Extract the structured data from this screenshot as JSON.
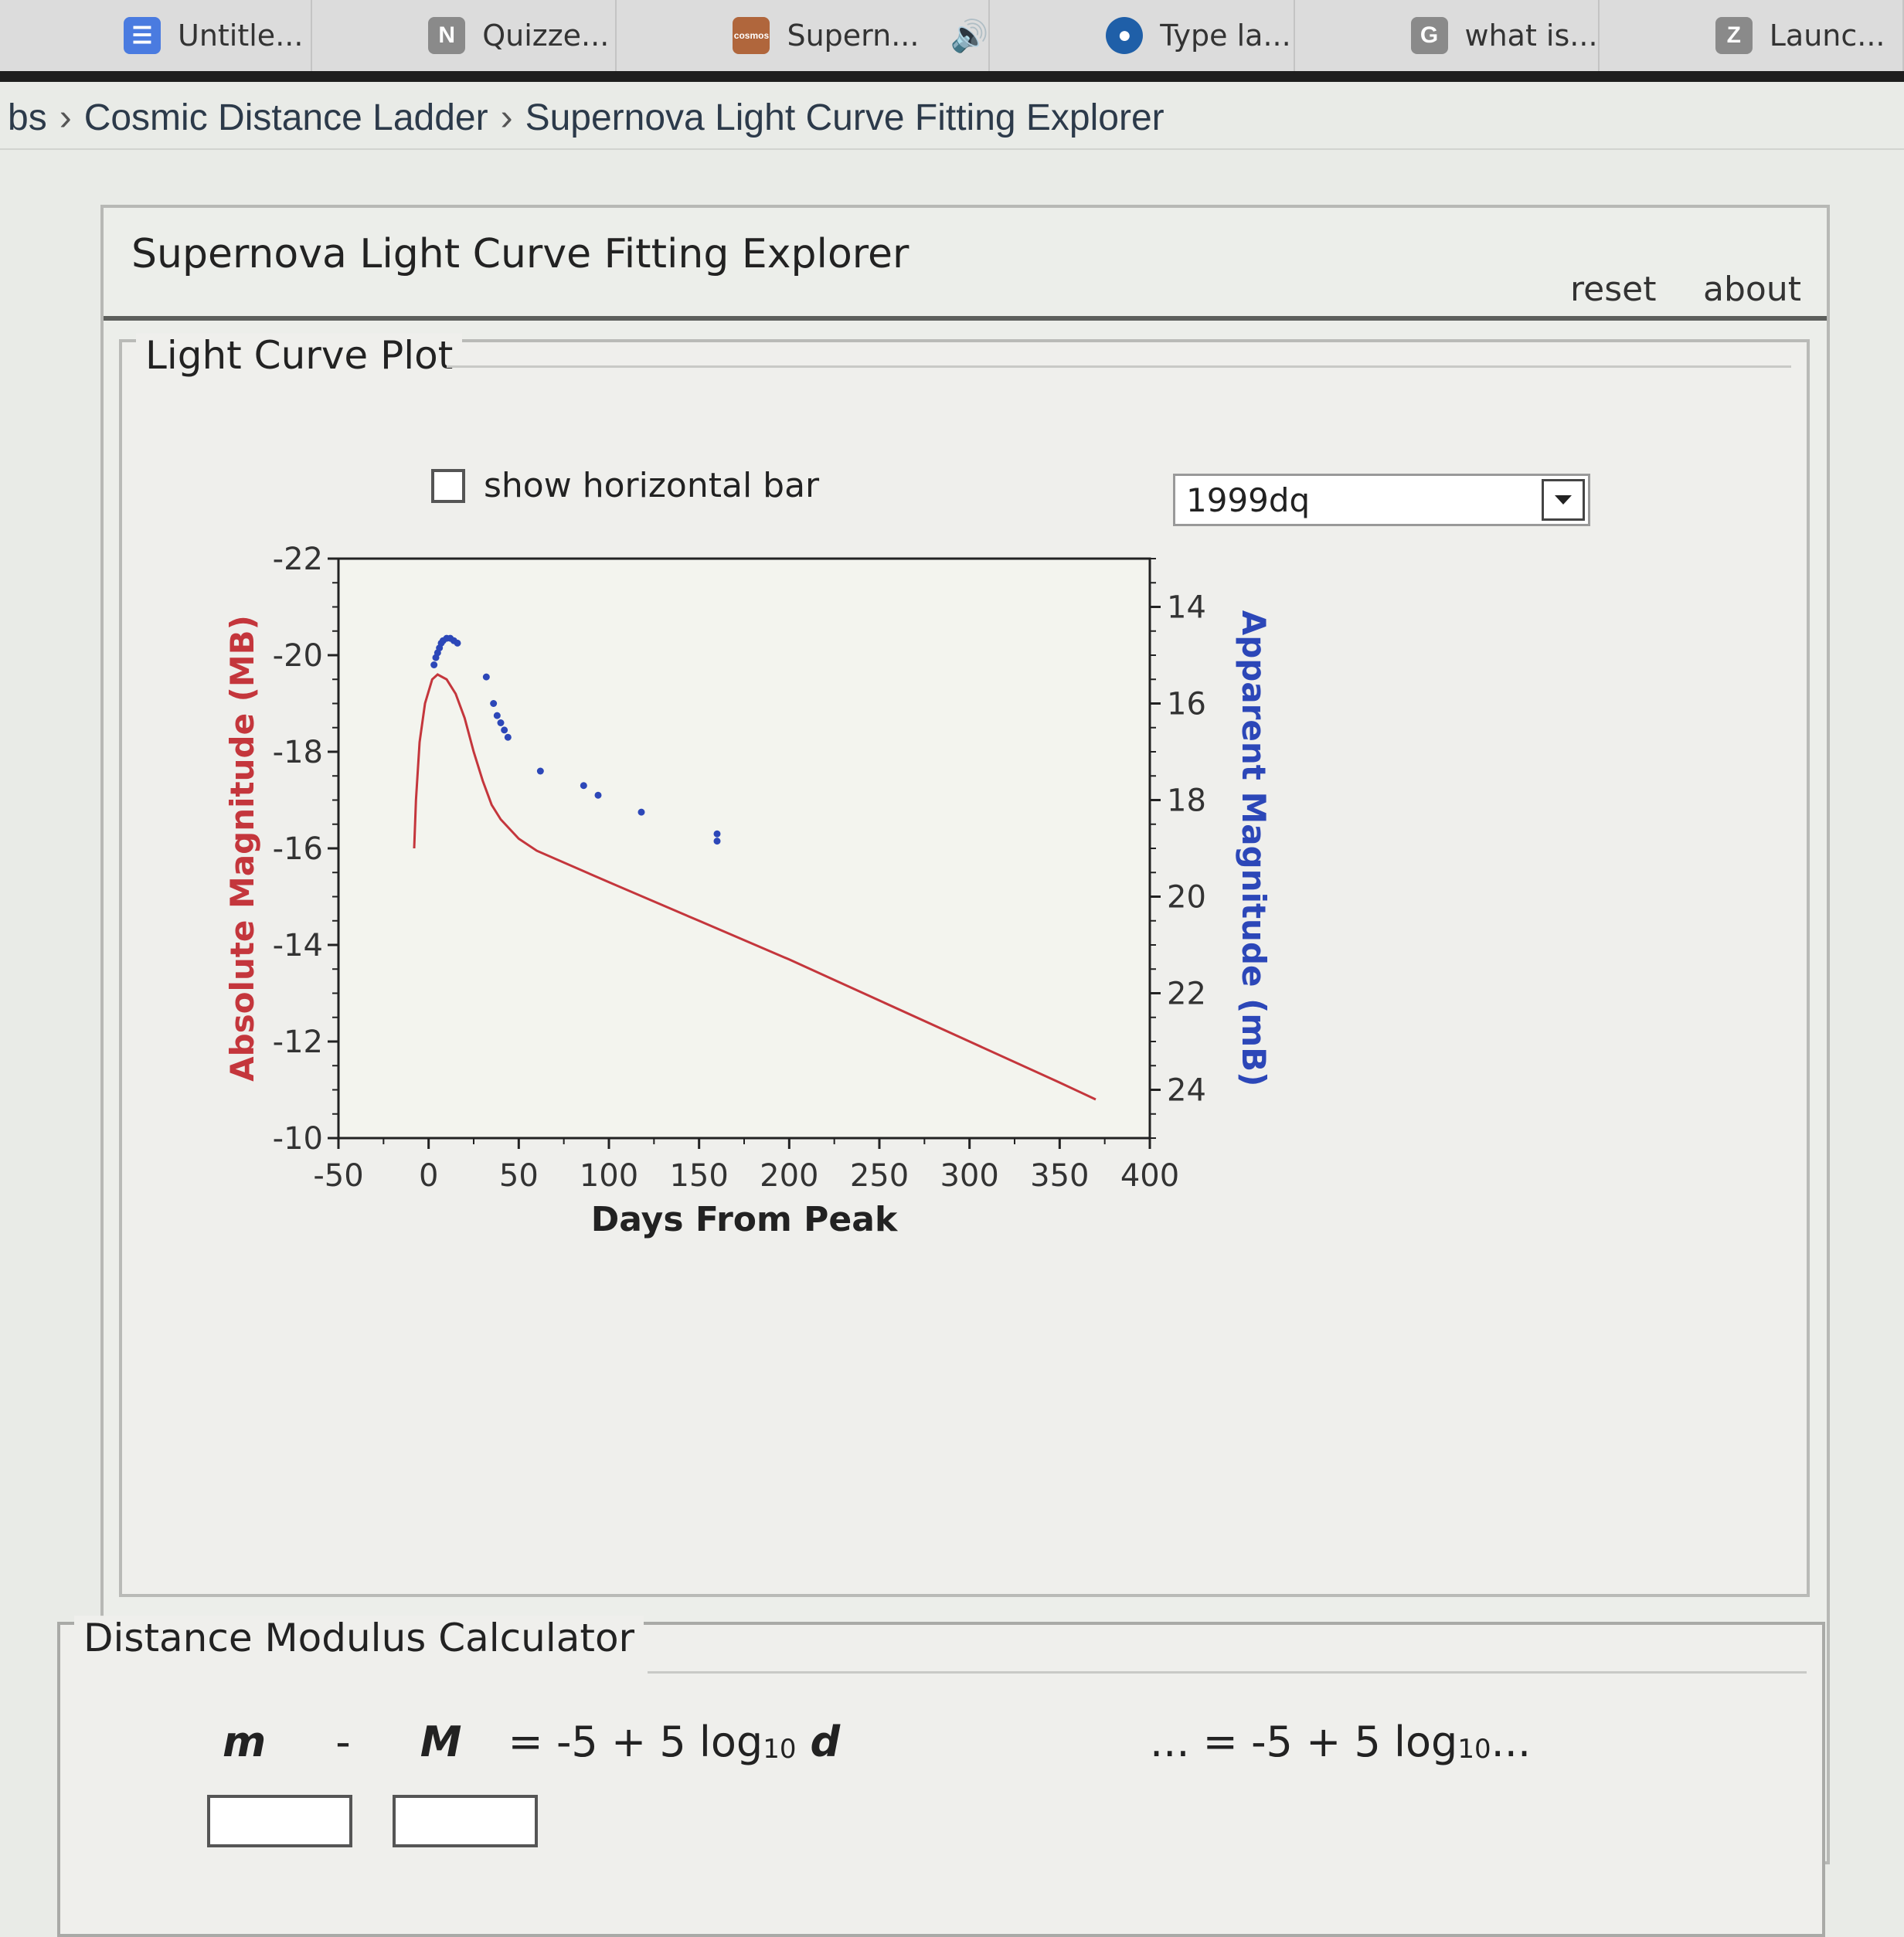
{
  "browser": {
    "tabs": [
      {
        "label": "Untitle...",
        "icon": "docs-icon",
        "icon_color": "#4a7be0",
        "icon_glyph": "☰"
      },
      {
        "label": "Quizze...",
        "icon": "n-icon",
        "icon_color": "#8a8a8a",
        "icon_glyph": "N"
      },
      {
        "label": "Supern...",
        "icon": "cosmos-icon",
        "icon_color": "#b0663c",
        "icon_glyph": "cosmos",
        "audio": "🔊"
      },
      {
        "label": "Type la...",
        "icon": "drop-icon",
        "icon_color": "#1f5fa8",
        "icon_glyph": "●"
      },
      {
        "label": "what is...",
        "icon": "g-icon",
        "icon_color": "#8a8a8a",
        "icon_glyph": "G"
      },
      {
        "label": "Launc...",
        "icon": "z-icon",
        "icon_color": "#8a8a8a",
        "icon_glyph": "Z"
      }
    ]
  },
  "breadcrumb": {
    "items": [
      "bs",
      "Cosmic Distance Ladder",
      "Supernova Light Curve Fitting Explorer"
    ],
    "separator": "›"
  },
  "panel": {
    "title": "Supernova Light Curve Fitting Explorer",
    "reset_label": "reset",
    "about_label": "about"
  },
  "light_curve": {
    "legend": "Light Curve Plot",
    "checkbox_label": "show horizontal bar",
    "checkbox_checked": false,
    "selected_supernova": "1999dq"
  },
  "distance_modulus": {
    "legend": "Distance Modulus Calculator",
    "m": "m",
    "minus": "-",
    "M": "M",
    "equation": "= -5 + 5 log",
    "sub": "10",
    "d": "d",
    "right_prefix": "... = -5 + 5 log",
    "right_sub": "10",
    "right_suffix": " ..."
  },
  "chart_data": {
    "type": "scatter",
    "xlabel": "Days From Peak",
    "ylabel_left": "Absolute Magnitude (MB)",
    "ylabel_right": "Apparent Magnitude (mB)",
    "xlim": [
      -50,
      400
    ],
    "xticks": [
      -50,
      0,
      50,
      100,
      150,
      200,
      250,
      300,
      350,
      400
    ],
    "ylim_left": [
      -22,
      -10
    ],
    "yticks_left": [
      -22,
      -20,
      -18,
      -16,
      -14,
      -12,
      -10
    ],
    "ylim_right": [
      13,
      25
    ],
    "yticks_right": [
      14,
      16,
      18,
      20,
      22,
      24
    ],
    "colors": {
      "model": "#c4363c",
      "data": "#2c47b8",
      "left_label": "#c4363c",
      "right_label": "#2c47b8"
    },
    "series": [
      {
        "kind": "line",
        "points": [
          [
            -8,
            -16.0
          ],
          [
            -7,
            -17.0
          ],
          [
            -5,
            -18.2
          ],
          [
            -2,
            -19.0
          ],
          [
            2,
            -19.5
          ],
          [
            5,
            -19.6
          ],
          [
            10,
            -19.5
          ],
          [
            15,
            -19.2
          ],
          [
            20,
            -18.7
          ],
          [
            25,
            -18.0
          ],
          [
            30,
            -17.4
          ],
          [
            35,
            -16.9
          ],
          [
            40,
            -16.6
          ],
          [
            50,
            -16.2
          ],
          [
            60,
            -15.95
          ],
          [
            100,
            -15.3
          ],
          [
            150,
            -14.5
          ],
          [
            200,
            -13.7
          ],
          [
            250,
            -12.85
          ],
          [
            300,
            -12.0
          ],
          [
            350,
            -11.15
          ],
          [
            370,
            -10.8
          ]
        ]
      },
      {
        "kind": "points",
        "points": [
          [
            3,
            -19.8
          ],
          [
            4,
            -19.95
          ],
          [
            5,
            -20.05
          ],
          [
            6,
            -20.15
          ],
          [
            7,
            -20.25
          ],
          [
            8,
            -20.3
          ],
          [
            10,
            -20.35
          ],
          [
            12,
            -20.35
          ],
          [
            14,
            -20.3
          ],
          [
            16,
            -20.25
          ],
          [
            32,
            -19.55
          ],
          [
            36,
            -19.0
          ],
          [
            38,
            -18.75
          ],
          [
            40,
            -18.6
          ],
          [
            42,
            -18.45
          ],
          [
            44,
            -18.3
          ],
          [
            62,
            -17.6
          ],
          [
            86,
            -17.3
          ],
          [
            94,
            -17.1
          ],
          [
            118,
            -16.75
          ],
          [
            160,
            -16.3
          ],
          [
            160,
            -16.15
          ]
        ]
      }
    ]
  }
}
